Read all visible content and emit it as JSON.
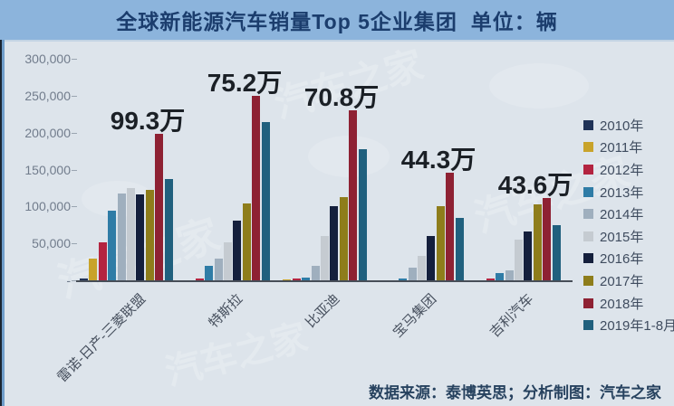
{
  "title": "全球新能源汽车销量Top 5企业集团  单位：辆",
  "source_note": "数据来源：泰博英思；分析制图：汽车之家",
  "watermark": "汽车之家",
  "colors": {
    "title_bar": "#8cb4dc",
    "title_text": "#1b3d6d",
    "chart_bg": "#dde4eb",
    "axis_text": "#717c8c",
    "value_label_text": "#1b2026",
    "source_text": "#27425f"
  },
  "chart_data": {
    "type": "bar",
    "title": "全球新能源汽车销量Top 5企业集团",
    "unit": "辆",
    "categories": [
      "雷诺-日产-三菱联盟",
      "特斯拉",
      "比亚迪",
      "宝马集团",
      "吉利汽车"
    ],
    "group_totals": [
      "99.3万",
      "75.2万",
      "70.8万",
      "44.3万",
      "43.6万"
    ],
    "series": [
      {
        "name": "2010年",
        "color": "#1f3257",
        "values": [
          3000,
          0,
          0,
          0,
          0
        ]
      },
      {
        "name": "2011年",
        "color": "#c8a32b",
        "values": [
          29000,
          0,
          1000,
          0,
          0
        ]
      },
      {
        "name": "2012年",
        "color": "#b32440",
        "values": [
          51000,
          3000,
          3000,
          0,
          2000
        ]
      },
      {
        "name": "2013年",
        "color": "#2f7ca6",
        "values": [
          94000,
          20000,
          4000,
          3000,
          10000
        ]
      },
      {
        "name": "2014年",
        "color": "#9fafbe",
        "values": [
          118000,
          29000,
          19000,
          17000,
          13000
        ]
      },
      {
        "name": "2015年",
        "color": "#c5cbd1",
        "values": [
          125000,
          51000,
          60000,
          33000,
          55000
        ]
      },
      {
        "name": "2016年",
        "color": "#141f3c",
        "values": [
          116000,
          81000,
          101000,
          60000,
          66000
        ]
      },
      {
        "name": "2017年",
        "color": "#8e7d1b",
        "values": [
          122000,
          104000,
          113000,
          100000,
          103000
        ]
      },
      {
        "name": "2018年",
        "color": "#8e2133",
        "values": [
          198000,
          250000,
          230000,
          146000,
          112000
        ]
      },
      {
        "name": "2019年1-8月",
        "color": "#20607e",
        "values": [
          137000,
          214000,
          177000,
          84000,
          75000
        ]
      }
    ],
    "y_ticks": [
      {
        "value": 300000,
        "label": "300,000"
      },
      {
        "value": 250000,
        "label": "250,000"
      },
      {
        "value": 200000,
        "label": "200,000"
      },
      {
        "value": 150000,
        "label": "150,000"
      },
      {
        "value": 100000,
        "label": "100,000"
      },
      {
        "value": 50000,
        "label": "50,000"
      },
      {
        "value": 0,
        "label": "-"
      }
    ],
    "ylim": [
      0,
      300000
    ],
    "grid": false,
    "legend_position": "right"
  }
}
